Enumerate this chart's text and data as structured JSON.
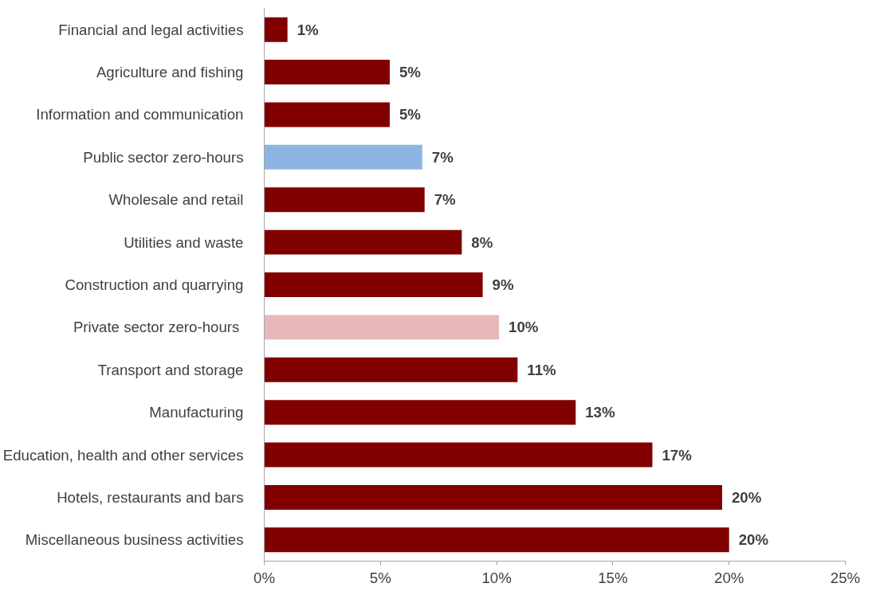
{
  "chart_data": {
    "type": "bar",
    "orientation": "horizontal",
    "categories": [
      "Financial and legal activities",
      "Agriculture and fishing",
      "Information and communication",
      "Public sector zero-hours",
      "Wholesale and retail",
      "Utilities and waste",
      "Construction and quarrying",
      "Private sector  zero-hours",
      "Transport and storage",
      "Manufacturing",
      "Education, health and other services",
      "Hotels, restaurants and bars",
      "Miscellaneous business activities"
    ],
    "values": [
      1.0,
      5.4,
      5.4,
      6.8,
      6.9,
      8.5,
      9.4,
      10.1,
      10.9,
      13.4,
      16.7,
      19.7,
      20.0
    ],
    "colors": [
      "#800000",
      "#800000",
      "#800000",
      "#8eb4e3",
      "#800000",
      "#800000",
      "#800000",
      "#e6b9b8",
      "#800000",
      "#800000",
      "#800000",
      "#800000",
      "#800000"
    ],
    "value_labels": [
      "1%",
      "5%",
      "5%",
      "7%",
      "7%",
      "8%",
      "9%",
      "10%",
      "11%",
      "13%",
      "17%",
      "20%",
      "20%"
    ],
    "xlim": [
      0,
      25
    ],
    "xticks": [
      {
        "value": 0,
        "label": "0%"
      },
      {
        "value": 5,
        "label": "5%"
      },
      {
        "value": 10,
        "label": "10%"
      },
      {
        "value": 15,
        "label": "15%"
      },
      {
        "value": 20,
        "label": "20%"
      },
      {
        "value": 25,
        "label": "25%"
      }
    ]
  }
}
